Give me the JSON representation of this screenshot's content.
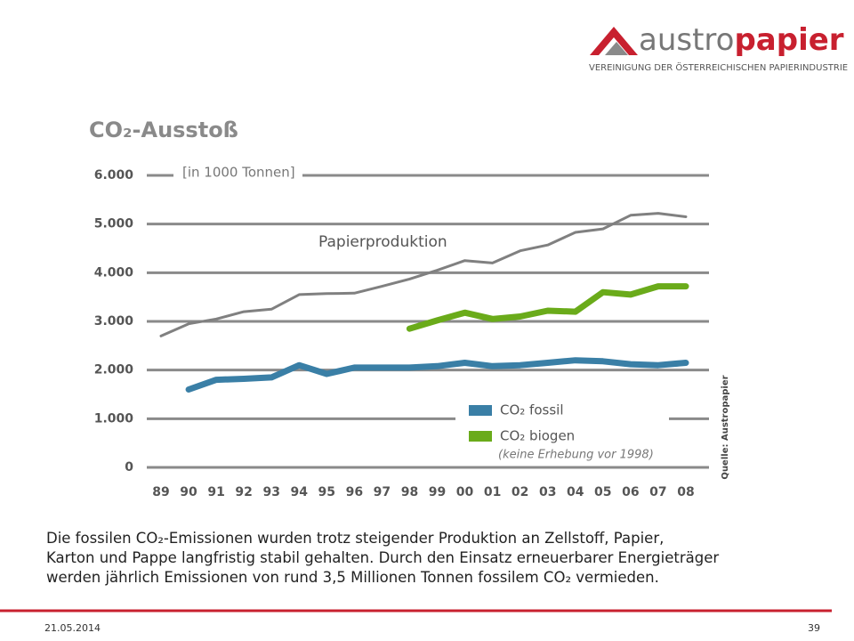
{
  "header": {
    "logo_left": "austro",
    "logo_right": "papier",
    "tagline": "VEREINIGUNG DER ÖSTERREICHISCHEN PAPIERINDUSTRIE"
  },
  "chart_data": {
    "type": "line",
    "title": "CO₂-Ausstoß",
    "unit_label": "[in 1000 Tonnen]",
    "note": "(keine Erhebung vor 1998)",
    "source": "Quelle: Austropapier",
    "categories": [
      "89",
      "90",
      "91",
      "92",
      "93",
      "94",
      "95",
      "96",
      "97",
      "98",
      "99",
      "00",
      "01",
      "02",
      "03",
      "04",
      "05",
      "06",
      "07",
      "08"
    ],
    "series": [
      {
        "name": "Papierproduktion",
        "color": "#808080",
        "values": [
          2700,
          2950,
          3050,
          3200,
          3250,
          3550,
          3570,
          3580,
          3720,
          3870,
          4050,
          4250,
          4200,
          4450,
          4570,
          4830,
          4900,
          5180,
          5220,
          5150
        ]
      },
      {
        "name": "CO₂ fossil",
        "color": "#3a7fa6",
        "values": [
          null,
          1600,
          1800,
          1820,
          1850,
          2100,
          1920,
          2050,
          2050,
          2050,
          2080,
          2150,
          2080,
          2100,
          2150,
          2200,
          2180,
          2120,
          2100,
          2150
        ]
      },
      {
        "name": "CO₂ biogen",
        "color": "#6aab1a",
        "values": [
          null,
          null,
          null,
          null,
          null,
          null,
          null,
          null,
          null,
          2850,
          3020,
          3180,
          3050,
          3100,
          3220,
          3200,
          3600,
          3550,
          3720,
          3720
        ]
      }
    ],
    "ylim": [
      0,
      6000
    ],
    "yticks": [
      0,
      {
        "value": 1000,
        "label": "1.000"
      },
      {
        "value": 2000,
        "label": "2.000"
      },
      {
        "value": 3000,
        "label": "3.000"
      },
      {
        "value": 4000,
        "label": "4.000"
      },
      {
        "value": 5000,
        "label": "5.000"
      },
      {
        "value": 6000,
        "label": "6.000"
      }
    ],
    "grid": true
  },
  "text": {
    "lines": [
      "Die fossilen CO₂-Emissionen  wurden trotz steigender Produktion an Zellstoff, Papier,",
      "Karton und Pappe langfristig stabil gehalten. Durch den Einsatz erneuerbarer Energieträger",
      "werden jährlich Emissionen von rund 3,5 Millionen Tonnen fossilem CO₂ vermieden."
    ]
  },
  "footer": {
    "date": "21.05.2014",
    "page": "39"
  }
}
